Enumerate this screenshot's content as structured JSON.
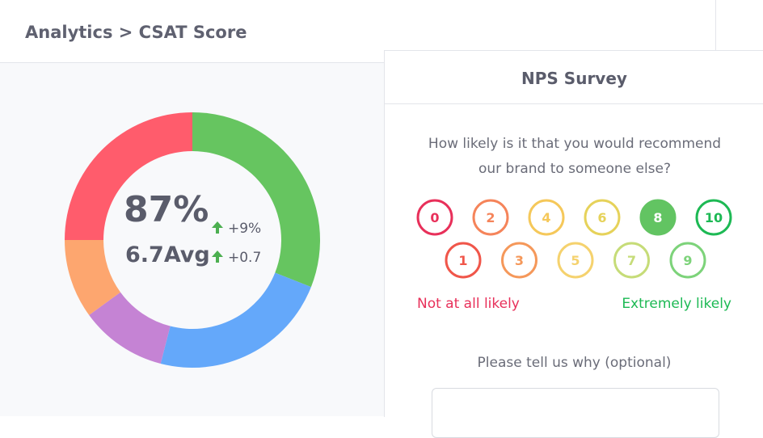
{
  "header": {
    "breadcrumb": "Analytics > CSAT Score"
  },
  "chart_data": {
    "type": "donut",
    "values": [
      31,
      23,
      11,
      10,
      25
    ],
    "colors": [
      "#66c560",
      "#64a8fa",
      "#c583d4",
      "#fda66f",
      "#ff5c6c"
    ],
    "center": {
      "score": "87%",
      "score_change": "+9%",
      "average": "6.7Avg",
      "average_change": "+0.7"
    }
  },
  "survey": {
    "title": "NPS Survey",
    "question": "How likely is it that you would recommend our brand to someone else?",
    "options": [
      0,
      1,
      2,
      3,
      4,
      5,
      6,
      7,
      8,
      9,
      10
    ],
    "option_colors": [
      "#e8305a",
      "#f0564a",
      "#f5845a",
      "#f5985a",
      "#f5c85a",
      "#f5d26e",
      "#e6d25a",
      "#c6dc78",
      "#62c462",
      "#7dd37a",
      "#1db954"
    ],
    "selected": 8,
    "low_label": "Not at all likely",
    "high_label": "Extremely likely",
    "comment_prompt": "Please tell us why (optional)"
  }
}
